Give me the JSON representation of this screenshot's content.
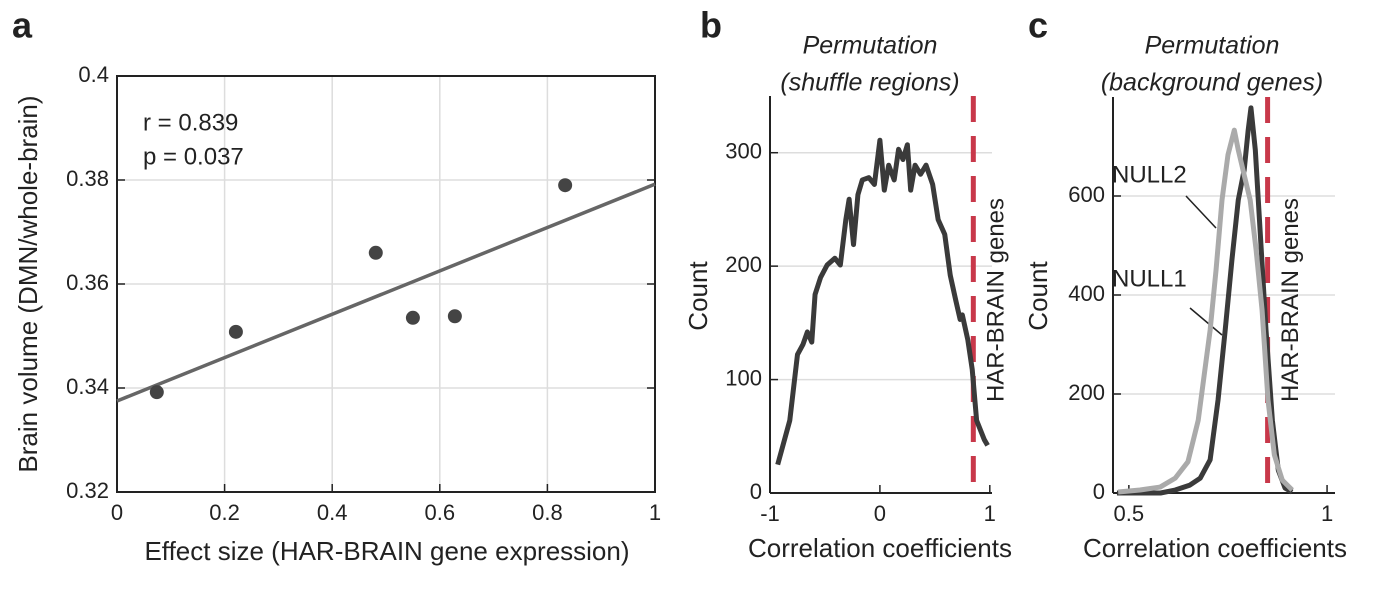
{
  "chart_data": [
    {
      "type": "scatter",
      "panel_label": "a",
      "xlabel": "Effect size (HAR-BRAIN gene expression)",
      "ylabel": "Brain volume (DMN/whole-brain)",
      "xlim": [
        0,
        1
      ],
      "ylim": [
        0.32,
        0.4
      ],
      "xticks": [
        0,
        0.2,
        0.4,
        0.6,
        0.8,
        1
      ],
      "yticks": [
        0.32,
        0.34,
        0.36,
        0.38,
        0.4
      ],
      "grid": "both",
      "box": true,
      "annotations": [
        "r = 0.839",
        "p = 0.037"
      ],
      "series": [
        {
          "color": "#444444",
          "x": [
            0.074,
            0.221,
            0.481,
            0.55,
            0.628,
            0.833
          ],
          "values": [
            0.3392,
            0.3508,
            0.366,
            0.3535,
            0.3538,
            0.379
          ]
        }
      ],
      "fit": {
        "color": "#666666",
        "x": [
          0,
          1
        ],
        "values": [
          0.3375,
          0.3792
        ]
      }
    },
    {
      "type": "line",
      "panel_label": "b",
      "title": [
        "Permutation",
        "(shuffle regions)"
      ],
      "xlabel": "Correlation coefficients",
      "ylabel": "Count",
      "xlim": [
        -1,
        1.02
      ],
      "ylim": [
        0,
        350
      ],
      "xticks": [
        -1,
        0,
        1
      ],
      "yticks": [
        0,
        100,
        200,
        300
      ],
      "grid": "y",
      "box": false,
      "vline": {
        "x": 0.85,
        "label": "HAR-BRAIN genes",
        "color": "#c8384a"
      },
      "series": [
        {
          "color": "#3a3a3a",
          "x": [
            -0.93,
            -0.82,
            -0.75,
            -0.7,
            -0.66,
            -0.62,
            -0.59,
            -0.54,
            -0.48,
            -0.41,
            -0.36,
            -0.31,
            -0.28,
            -0.24,
            -0.2,
            -0.16,
            -0.1,
            -0.05,
            0.0,
            0.04,
            0.08,
            0.13,
            0.17,
            0.21,
            0.25,
            0.28,
            0.32,
            0.37,
            0.42,
            0.48,
            0.53,
            0.59,
            0.64,
            0.69,
            0.73,
            0.75,
            0.8,
            0.84,
            0.88,
            0.95,
            0.98
          ],
          "values": [
            25,
            64,
            122,
            131,
            142,
            133,
            175,
            190,
            201,
            207,
            201,
            241,
            259,
            219,
            263,
            276,
            278,
            272,
            311,
            267,
            289,
            276,
            303,
            294,
            307,
            267,
            289,
            281,
            289,
            272,
            241,
            228,
            192,
            170,
            153,
            157,
            135,
            109,
            64,
            47,
            42
          ]
        }
      ]
    },
    {
      "type": "line",
      "panel_label": "c",
      "title": [
        "Permutation",
        "(background genes)"
      ],
      "xlabel": "Correlation coefficients",
      "ylabel": "Count",
      "xlim": [
        0.46,
        1.02
      ],
      "ylim": [
        0,
        800
      ],
      "xticks": [
        0.5,
        1
      ],
      "yticks": [
        0,
        200,
        400,
        600
      ],
      "grid": "y",
      "box": false,
      "vline": {
        "x": 0.85,
        "label": "HAR-BRAIN genes",
        "color": "#c8384a"
      },
      "series": [
        {
          "name": "NULL1",
          "color": "#3a3a3a",
          "x": [
            0.47,
            0.58,
            0.617,
            0.654,
            0.68,
            0.705,
            0.725,
            0.743,
            0.76,
            0.776,
            0.791,
            0.801,
            0.808,
            0.819,
            0.831,
            0.846,
            0.862,
            0.877,
            0.894,
            0.912
          ],
          "values": [
            0,
            0,
            6,
            16,
            30,
            67,
            188,
            329,
            471,
            592,
            653,
            733,
            778,
            693,
            531,
            329,
            147,
            46,
            10,
            2
          ]
        },
        {
          "name": "NULL2",
          "color": "#aaaaaa",
          "x": [
            0.473,
            0.528,
            0.579,
            0.617,
            0.649,
            0.675,
            0.69,
            0.705,
            0.72,
            0.735,
            0.75,
            0.766,
            0.776,
            0.791,
            0.806,
            0.821,
            0.836,
            0.851,
            0.867,
            0.887,
            0.912
          ],
          "values": [
            2,
            6,
            12,
            30,
            63,
            147,
            238,
            329,
            451,
            592,
            683,
            733,
            693,
            642,
            592,
            491,
            370,
            188,
            77,
            26,
            6
          ]
        }
      ]
    }
  ]
}
